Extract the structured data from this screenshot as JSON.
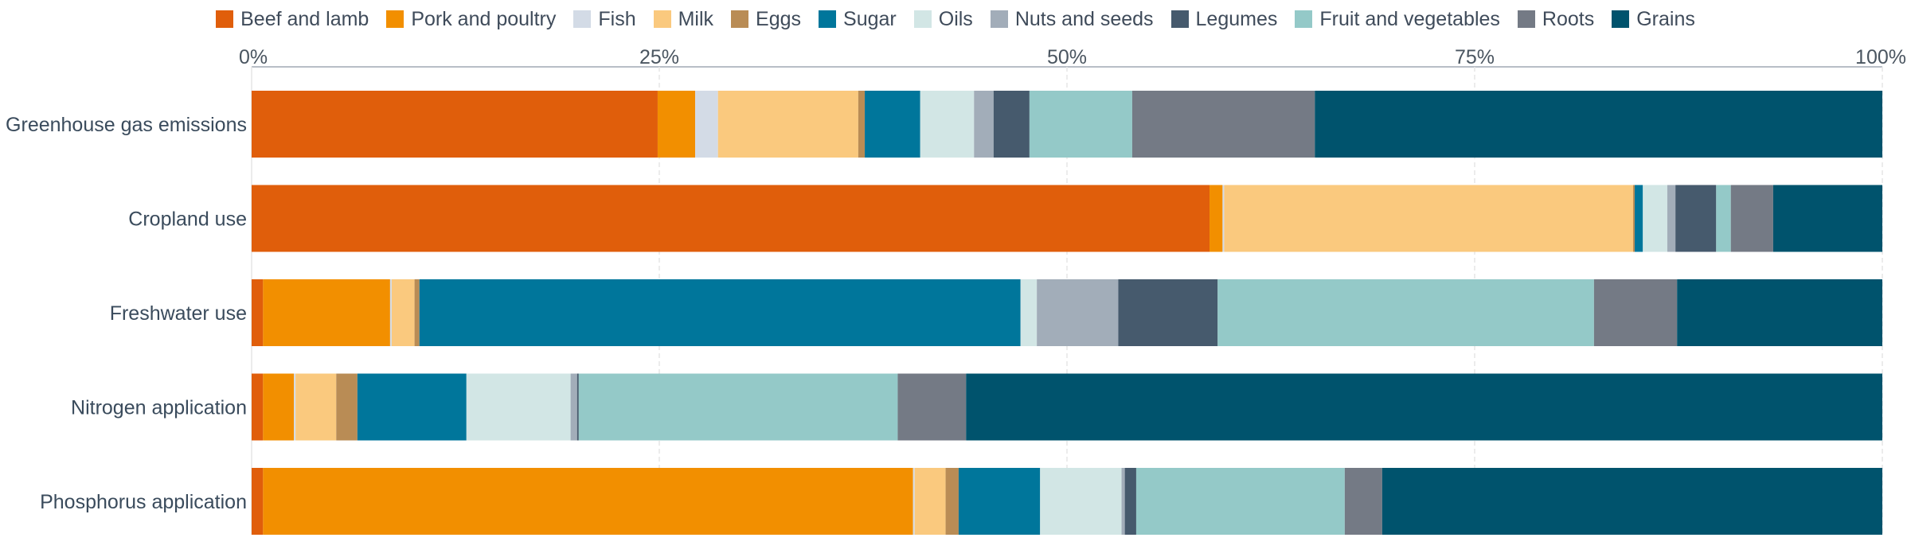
{
  "chart_data": {
    "type": "bar",
    "orientation": "horizontal",
    "stacked": true,
    "percent_scale": true,
    "title": "",
    "xlabel": "",
    "ylabel": "",
    "xlim": [
      0,
      100
    ],
    "x_ticks": [
      "0%",
      "25%",
      "50%",
      "75%",
      "100%"
    ],
    "x_tick_values": [
      0,
      25,
      50,
      75,
      100
    ],
    "grid": true,
    "legend_position": "top",
    "categories": [
      "Greenhouse gas emissions",
      "Cropland use",
      "Freshwater use",
      "Nitrogen application",
      "Phosphorus application"
    ],
    "series": [
      {
        "name": "Beef and lamb",
        "color": "#e05e0b",
        "values": [
          24.9,
          58.8,
          0.7,
          0.7,
          0.7
        ]
      },
      {
        "name": "Pork and poultry",
        "color": "#f28f00",
        "values": [
          2.3,
          0.8,
          7.8,
          1.9,
          39.9
        ]
      },
      {
        "name": "Fish",
        "color": "#d3dbe6",
        "values": [
          1.4,
          0.1,
          0.1,
          0.1,
          0.1
        ]
      },
      {
        "name": "Milk",
        "color": "#fac97e",
        "values": [
          8.6,
          25.1,
          1.4,
          2.5,
          1.9
        ]
      },
      {
        "name": "Eggs",
        "color": "#b98c55",
        "values": [
          0.4,
          0.1,
          0.3,
          1.3,
          0.8
        ]
      },
      {
        "name": "Sugar",
        "color": "#00769b",
        "values": [
          3.4,
          0.5,
          36.9,
          6.7,
          5.0
        ]
      },
      {
        "name": "Oils",
        "color": "#d2e6e5",
        "values": [
          3.3,
          1.5,
          1.0,
          6.4,
          5.0
        ]
      },
      {
        "name": "Nuts and seeds",
        "color": "#a2adb9",
        "values": [
          1.2,
          0.5,
          5.0,
          0.4,
          0.2
        ]
      },
      {
        "name": "Legumes",
        "color": "#465a6d",
        "values": [
          2.2,
          2.5,
          6.1,
          0.1,
          0.7
        ]
      },
      {
        "name": "Fruit and vegetables",
        "color": "#94c9c8",
        "values": [
          6.3,
          0.9,
          23.1,
          19.6,
          12.8
        ]
      },
      {
        "name": "Roots",
        "color": "#747a85",
        "values": [
          11.2,
          2.6,
          5.1,
          4.2,
          2.3
        ]
      },
      {
        "name": "Grains",
        "color": "#00536d",
        "values": [
          34.8,
          6.7,
          12.6,
          56.3,
          30.7
        ]
      }
    ]
  }
}
